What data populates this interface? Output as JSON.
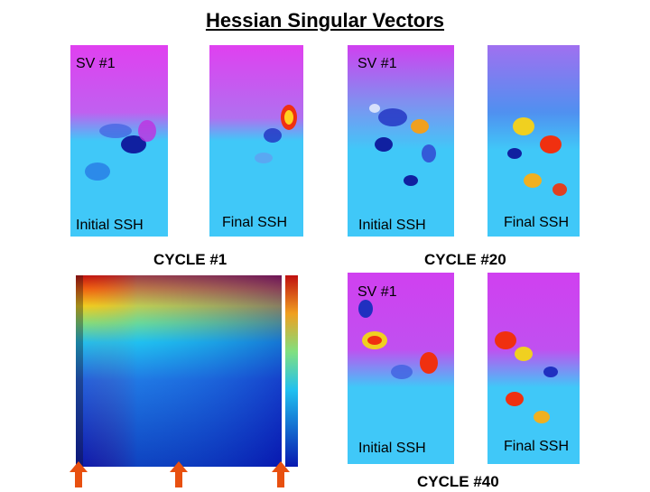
{
  "title": "Hessian Singular Vectors",
  "labels": {
    "sv": "SV #1",
    "initial": "Initial SSH",
    "final": "Final SSH"
  },
  "captions": {
    "c1": "CYCLE #1",
    "c20": "CYCLE #20",
    "c40": "CYCLE #40"
  },
  "colors": {
    "magenta": "#e040f0",
    "cyan": "#40c8f8",
    "arrow": "#e85010"
  },
  "icons": [
    "up-arrow-icon",
    "up-arrow-icon",
    "up-arrow-icon"
  ]
}
